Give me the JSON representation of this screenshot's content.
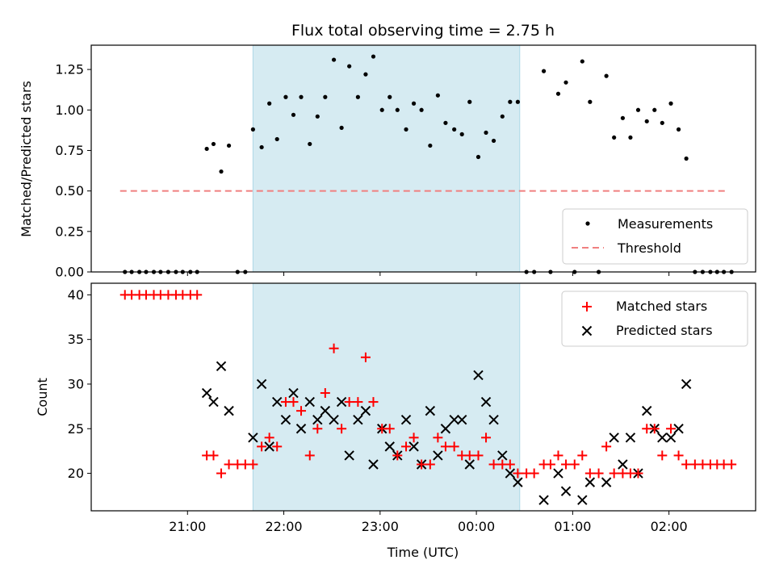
{
  "colors": {
    "shade": "#add8e6",
    "threshold": "#f08080",
    "matched": "#ff0000",
    "predicted": "#000000",
    "measurement": "#000000"
  },
  "chart_data": [
    {
      "type": "scatter",
      "title": "Flux total observing time = 2.75 h",
      "xlabel": "",
      "ylabel": "Matched/Predicted stars",
      "xlim_hours": [
        20.0,
        26.9
      ],
      "ylim": [
        0,
        1.4
      ],
      "yticks": [
        0.0,
        0.25,
        0.5,
        0.75,
        1.0,
        1.25
      ],
      "ytick_labels": [
        "0.00",
        "0.25",
        "0.50",
        "0.75",
        "1.00",
        "1.25"
      ],
      "shaded_region_hours": [
        21.68,
        24.45
      ],
      "threshold": {
        "name": "Threshold",
        "value": 0.5,
        "x_hours": [
          20.3,
          26.6
        ]
      },
      "legend": {
        "position": "lower-right",
        "entries": [
          "Measurements",
          "Threshold"
        ]
      },
      "series": [
        {
          "name": "Measurements",
          "points": [
            [
              20.35,
              0.0
            ],
            [
              20.42,
              0.0
            ],
            [
              20.5,
              0.0
            ],
            [
              20.57,
              0.0
            ],
            [
              20.65,
              0.0
            ],
            [
              20.72,
              0.0
            ],
            [
              20.8,
              0.0
            ],
            [
              20.88,
              0.0
            ],
            [
              20.95,
              0.0
            ],
            [
              21.03,
              0.0
            ],
            [
              21.1,
              0.0
            ],
            [
              21.2,
              0.76
            ],
            [
              21.27,
              0.79
            ],
            [
              21.35,
              0.62
            ],
            [
              21.43,
              0.78
            ],
            [
              21.52,
              0.0
            ],
            [
              21.6,
              0.0
            ],
            [
              21.68,
              0.88
            ],
            [
              21.77,
              0.77
            ],
            [
              21.85,
              1.04
            ],
            [
              21.93,
              0.82
            ],
            [
              22.02,
              1.08
            ],
            [
              22.1,
              0.97
            ],
            [
              22.18,
              1.08
            ],
            [
              22.27,
              0.79
            ],
            [
              22.35,
              0.96
            ],
            [
              22.43,
              1.08
            ],
            [
              22.52,
              1.31
            ],
            [
              22.6,
              0.89
            ],
            [
              22.68,
              1.27
            ],
            [
              22.77,
              1.08
            ],
            [
              22.85,
              1.22
            ],
            [
              22.93,
              1.33
            ],
            [
              23.02,
              1.0
            ],
            [
              23.1,
              1.08
            ],
            [
              23.18,
              1.0
            ],
            [
              23.27,
              0.88
            ],
            [
              23.35,
              1.04
            ],
            [
              23.43,
              1.0
            ],
            [
              23.52,
              0.78
            ],
            [
              23.6,
              1.09
            ],
            [
              23.68,
              0.92
            ],
            [
              23.77,
              0.88
            ],
            [
              23.85,
              0.85
            ],
            [
              23.93,
              1.05
            ],
            [
              24.02,
              0.71
            ],
            [
              24.1,
              0.86
            ],
            [
              24.18,
              0.81
            ],
            [
              24.27,
              0.96
            ],
            [
              24.35,
              1.05
            ],
            [
              24.43,
              1.05
            ],
            [
              24.52,
              0.0
            ],
            [
              24.6,
              0.0
            ],
            [
              24.77,
              0.0
            ],
            [
              25.02,
              0.0
            ],
            [
              25.27,
              0.0
            ],
            [
              24.7,
              1.24
            ],
            [
              24.85,
              1.1
            ],
            [
              24.93,
              1.17
            ],
            [
              25.1,
              1.3
            ],
            [
              25.18,
              1.05
            ],
            [
              25.35,
              1.21
            ],
            [
              25.43,
              0.83
            ],
            [
              25.52,
              0.95
            ],
            [
              25.6,
              0.83
            ],
            [
              25.68,
              1.0
            ],
            [
              25.77,
              0.93
            ],
            [
              25.85,
              1.0
            ],
            [
              25.93,
              0.92
            ],
            [
              26.02,
              1.04
            ],
            [
              26.1,
              0.88
            ],
            [
              26.18,
              0.7
            ],
            [
              26.27,
              0.0
            ],
            [
              26.35,
              0.0
            ],
            [
              26.43,
              0.0
            ],
            [
              26.5,
              0.0
            ],
            [
              26.57,
              0.0
            ],
            [
              26.65,
              0.0
            ]
          ]
        }
      ]
    },
    {
      "type": "scatter",
      "title": "",
      "xlabel": "Time (UTC)",
      "ylabel": "Count",
      "xlim_hours": [
        20.0,
        26.9
      ],
      "ylim": [
        15.8,
        41.3
      ],
      "yticks": [
        20,
        25,
        30,
        35,
        40
      ],
      "ytick_labels": [
        "20",
        "25",
        "30",
        "35",
        "40"
      ],
      "xticks_hours": [
        21,
        22,
        23,
        24,
        25,
        26
      ],
      "xtick_labels": [
        "21:00",
        "22:00",
        "23:00",
        "00:00",
        "01:00",
        "02:00"
      ],
      "shaded_region_hours": [
        21.68,
        24.45
      ],
      "legend": {
        "position": "upper-right",
        "entries": [
          "Matched stars",
          "Predicted stars"
        ]
      },
      "series": [
        {
          "name": "Matched stars",
          "marker": "plus",
          "points": [
            [
              20.35,
              40
            ],
            [
              20.42,
              40
            ],
            [
              20.5,
              40
            ],
            [
              20.57,
              40
            ],
            [
              20.65,
              40
            ],
            [
              20.72,
              40
            ],
            [
              20.8,
              40
            ],
            [
              20.88,
              40
            ],
            [
              20.95,
              40
            ],
            [
              21.03,
              40
            ],
            [
              21.1,
              40
            ],
            [
              21.2,
              22
            ],
            [
              21.27,
              22
            ],
            [
              21.35,
              20
            ],
            [
              21.43,
              21
            ],
            [
              21.52,
              21
            ],
            [
              21.6,
              21
            ],
            [
              21.68,
              21
            ],
            [
              21.77,
              23
            ],
            [
              21.85,
              24
            ],
            [
              21.93,
              23
            ],
            [
              22.02,
              28
            ],
            [
              22.1,
              28
            ],
            [
              22.18,
              27
            ],
            [
              22.27,
              22
            ],
            [
              22.35,
              25
            ],
            [
              22.43,
              29
            ],
            [
              22.52,
              34
            ],
            [
              22.6,
              25
            ],
            [
              22.68,
              28
            ],
            [
              22.77,
              28
            ],
            [
              22.85,
              33
            ],
            [
              22.93,
              28
            ],
            [
              23.02,
              25
            ],
            [
              23.1,
              25
            ],
            [
              23.18,
              22
            ],
            [
              23.27,
              23
            ],
            [
              23.35,
              24
            ],
            [
              23.43,
              21
            ],
            [
              23.52,
              21
            ],
            [
              23.6,
              24
            ],
            [
              23.68,
              23
            ],
            [
              23.77,
              23
            ],
            [
              23.85,
              22
            ],
            [
              23.93,
              22
            ],
            [
              24.02,
              22
            ],
            [
              24.1,
              24
            ],
            [
              24.18,
              21
            ],
            [
              24.27,
              21
            ],
            [
              24.35,
              21
            ],
            [
              24.43,
              20
            ],
            [
              24.52,
              20
            ],
            [
              24.6,
              20
            ],
            [
              24.7,
              21
            ],
            [
              24.77,
              21
            ],
            [
              24.85,
              22
            ],
            [
              24.93,
              21
            ],
            [
              25.02,
              21
            ],
            [
              25.1,
              22
            ],
            [
              25.18,
              20
            ],
            [
              25.27,
              20
            ],
            [
              25.35,
              23
            ],
            [
              25.43,
              20
            ],
            [
              25.52,
              20
            ],
            [
              25.6,
              20
            ],
            [
              25.68,
              20
            ],
            [
              25.77,
              25
            ],
            [
              25.85,
              25
            ],
            [
              25.93,
              22
            ],
            [
              26.02,
              25
            ],
            [
              26.1,
              22
            ],
            [
              26.18,
              21
            ],
            [
              26.27,
              21
            ],
            [
              26.35,
              21
            ],
            [
              26.43,
              21
            ],
            [
              26.5,
              21
            ],
            [
              26.57,
              21
            ],
            [
              26.65,
              21
            ]
          ]
        },
        {
          "name": "Predicted stars",
          "marker": "x",
          "points": [
            [
              21.2,
              29
            ],
            [
              21.27,
              28
            ],
            [
              21.35,
              32
            ],
            [
              21.43,
              27
            ],
            [
              21.68,
              24
            ],
            [
              21.77,
              30
            ],
            [
              21.85,
              23
            ],
            [
              21.93,
              28
            ],
            [
              22.02,
              26
            ],
            [
              22.1,
              29
            ],
            [
              22.18,
              25
            ],
            [
              22.27,
              28
            ],
            [
              22.35,
              26
            ],
            [
              22.43,
              27
            ],
            [
              22.52,
              26
            ],
            [
              22.6,
              28
            ],
            [
              22.68,
              22
            ],
            [
              22.77,
              26
            ],
            [
              22.85,
              27
            ],
            [
              22.93,
              21
            ],
            [
              23.02,
              25
            ],
            [
              23.1,
              23
            ],
            [
              23.18,
              22
            ],
            [
              23.27,
              26
            ],
            [
              23.35,
              23
            ],
            [
              23.43,
              21
            ],
            [
              23.52,
              27
            ],
            [
              23.6,
              22
            ],
            [
              23.68,
              25
            ],
            [
              23.77,
              26
            ],
            [
              23.85,
              26
            ],
            [
              23.93,
              21
            ],
            [
              24.02,
              31
            ],
            [
              24.1,
              28
            ],
            [
              24.18,
              26
            ],
            [
              24.27,
              22
            ],
            [
              24.35,
              20
            ],
            [
              24.43,
              19
            ],
            [
              24.7,
              17
            ],
            [
              24.85,
              20
            ],
            [
              24.93,
              18
            ],
            [
              25.1,
              17
            ],
            [
              25.18,
              19
            ],
            [
              25.35,
              19
            ],
            [
              25.43,
              24
            ],
            [
              25.52,
              21
            ],
            [
              25.6,
              24
            ],
            [
              25.68,
              20
            ],
            [
              25.77,
              27
            ],
            [
              25.85,
              25
            ],
            [
              25.93,
              24
            ],
            [
              26.02,
              24
            ],
            [
              26.1,
              25
            ],
            [
              26.18,
              30
            ]
          ]
        }
      ]
    }
  ]
}
